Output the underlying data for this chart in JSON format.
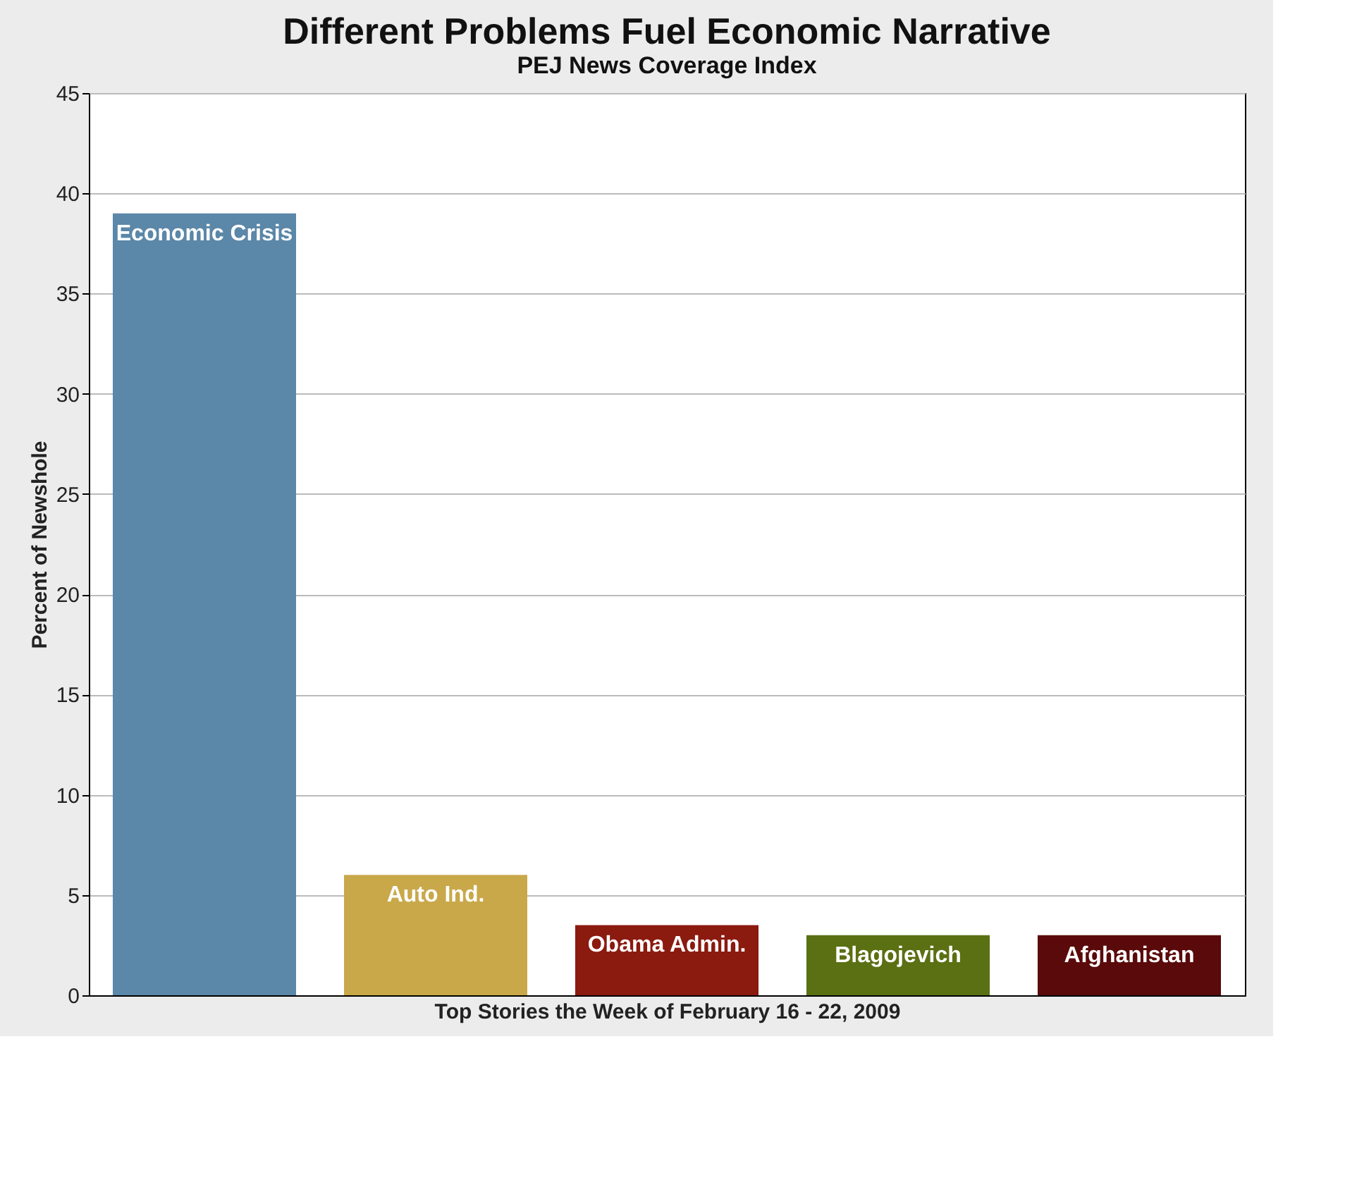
{
  "chart_data": {
    "type": "bar",
    "title": "Different Problems Fuel Economic Narrative",
    "subtitle": "PEJ News Coverage Index",
    "xlabel": "Top Stories the Week of February 16 - 22, 2009",
    "ylabel": "Percent of Newshole",
    "categories": [
      "Economic Crisis",
      "Auto Ind.",
      "Obama Admin.",
      "Blagojevich",
      "Afghanistan"
    ],
    "values": [
      39,
      6,
      3.5,
      3,
      3
    ],
    "colors": [
      "#5b87a8",
      "#c9a84a",
      "#8b1a0f",
      "#5a7013",
      "#5a0a0a"
    ],
    "ylim": [
      0,
      45
    ],
    "yticks": [
      0,
      5,
      10,
      15,
      20,
      25,
      30,
      35,
      40,
      45
    ],
    "grid": "y",
    "tick_labels": "y"
  }
}
